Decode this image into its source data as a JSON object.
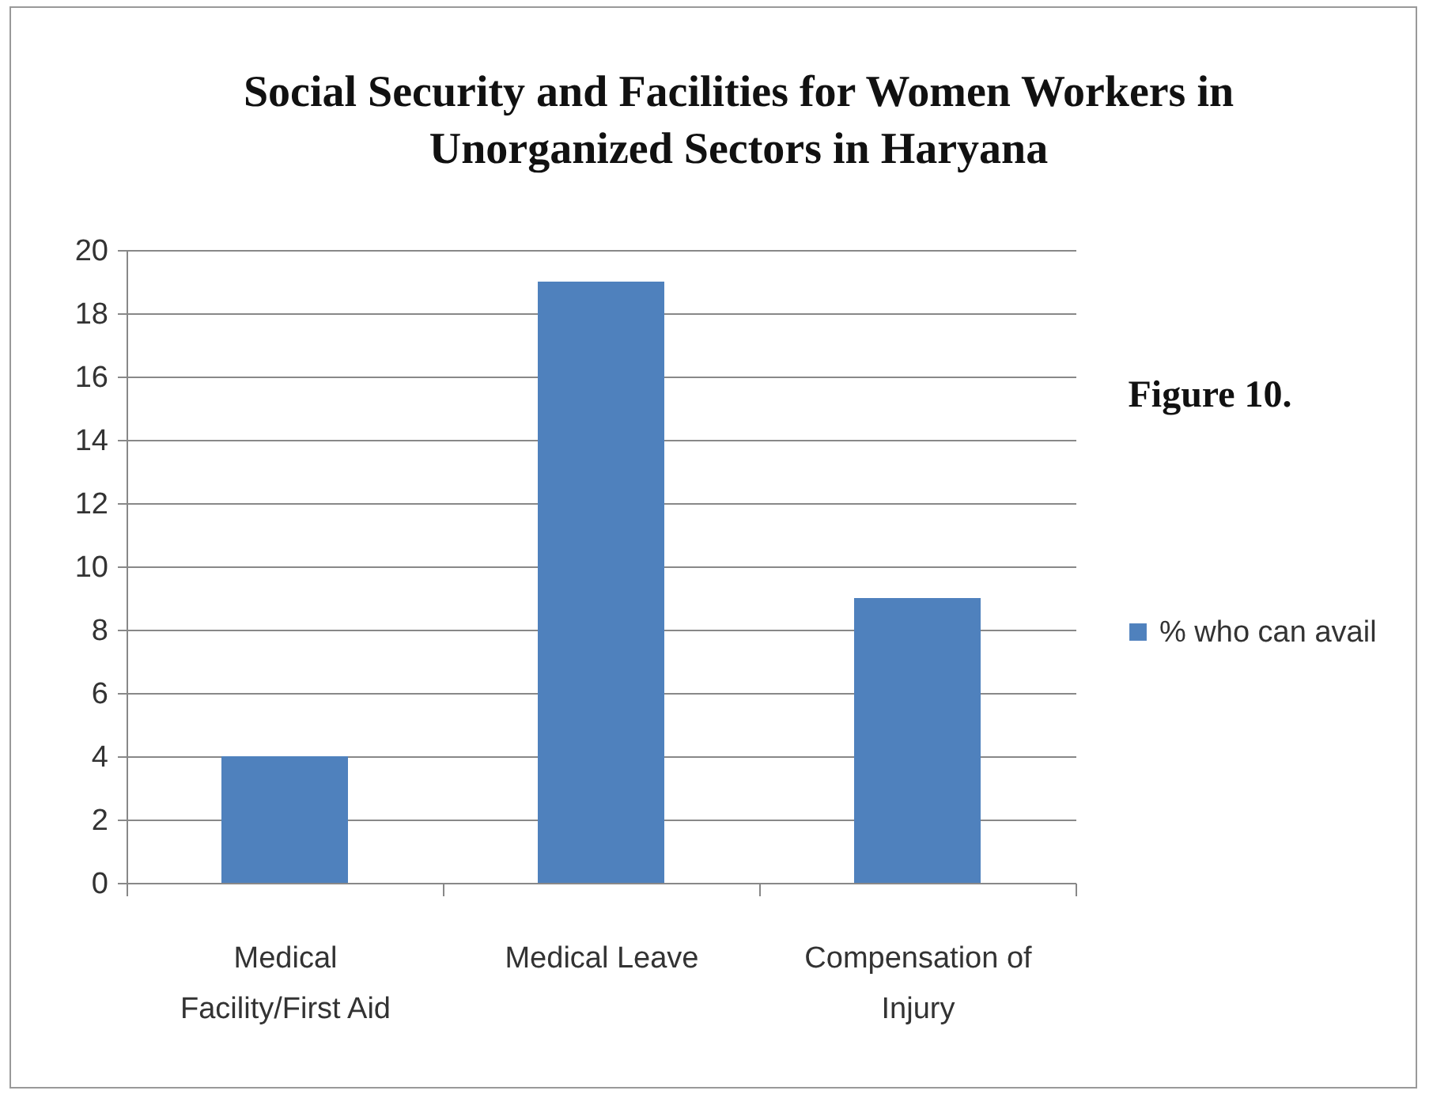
{
  "chart_data": {
    "type": "bar",
    "title": "Social Security and Facilities for Women Workers in Unorganized Sectors in Haryana",
    "categories": [
      "Medical Facility/First Aid",
      "Medical Leave",
      "Compensation of Injury"
    ],
    "series": [
      {
        "name": "% who can avail",
        "color": "#4f81bd",
        "values": [
          4,
          19,
          9
        ]
      }
    ],
    "ylim": [
      0,
      20
    ],
    "yticks": [
      0,
      2,
      4,
      6,
      8,
      10,
      12,
      14,
      16,
      18,
      20
    ],
    "grid": "y",
    "legend": "right",
    "annotations": [
      "Figure 10."
    ]
  }
}
